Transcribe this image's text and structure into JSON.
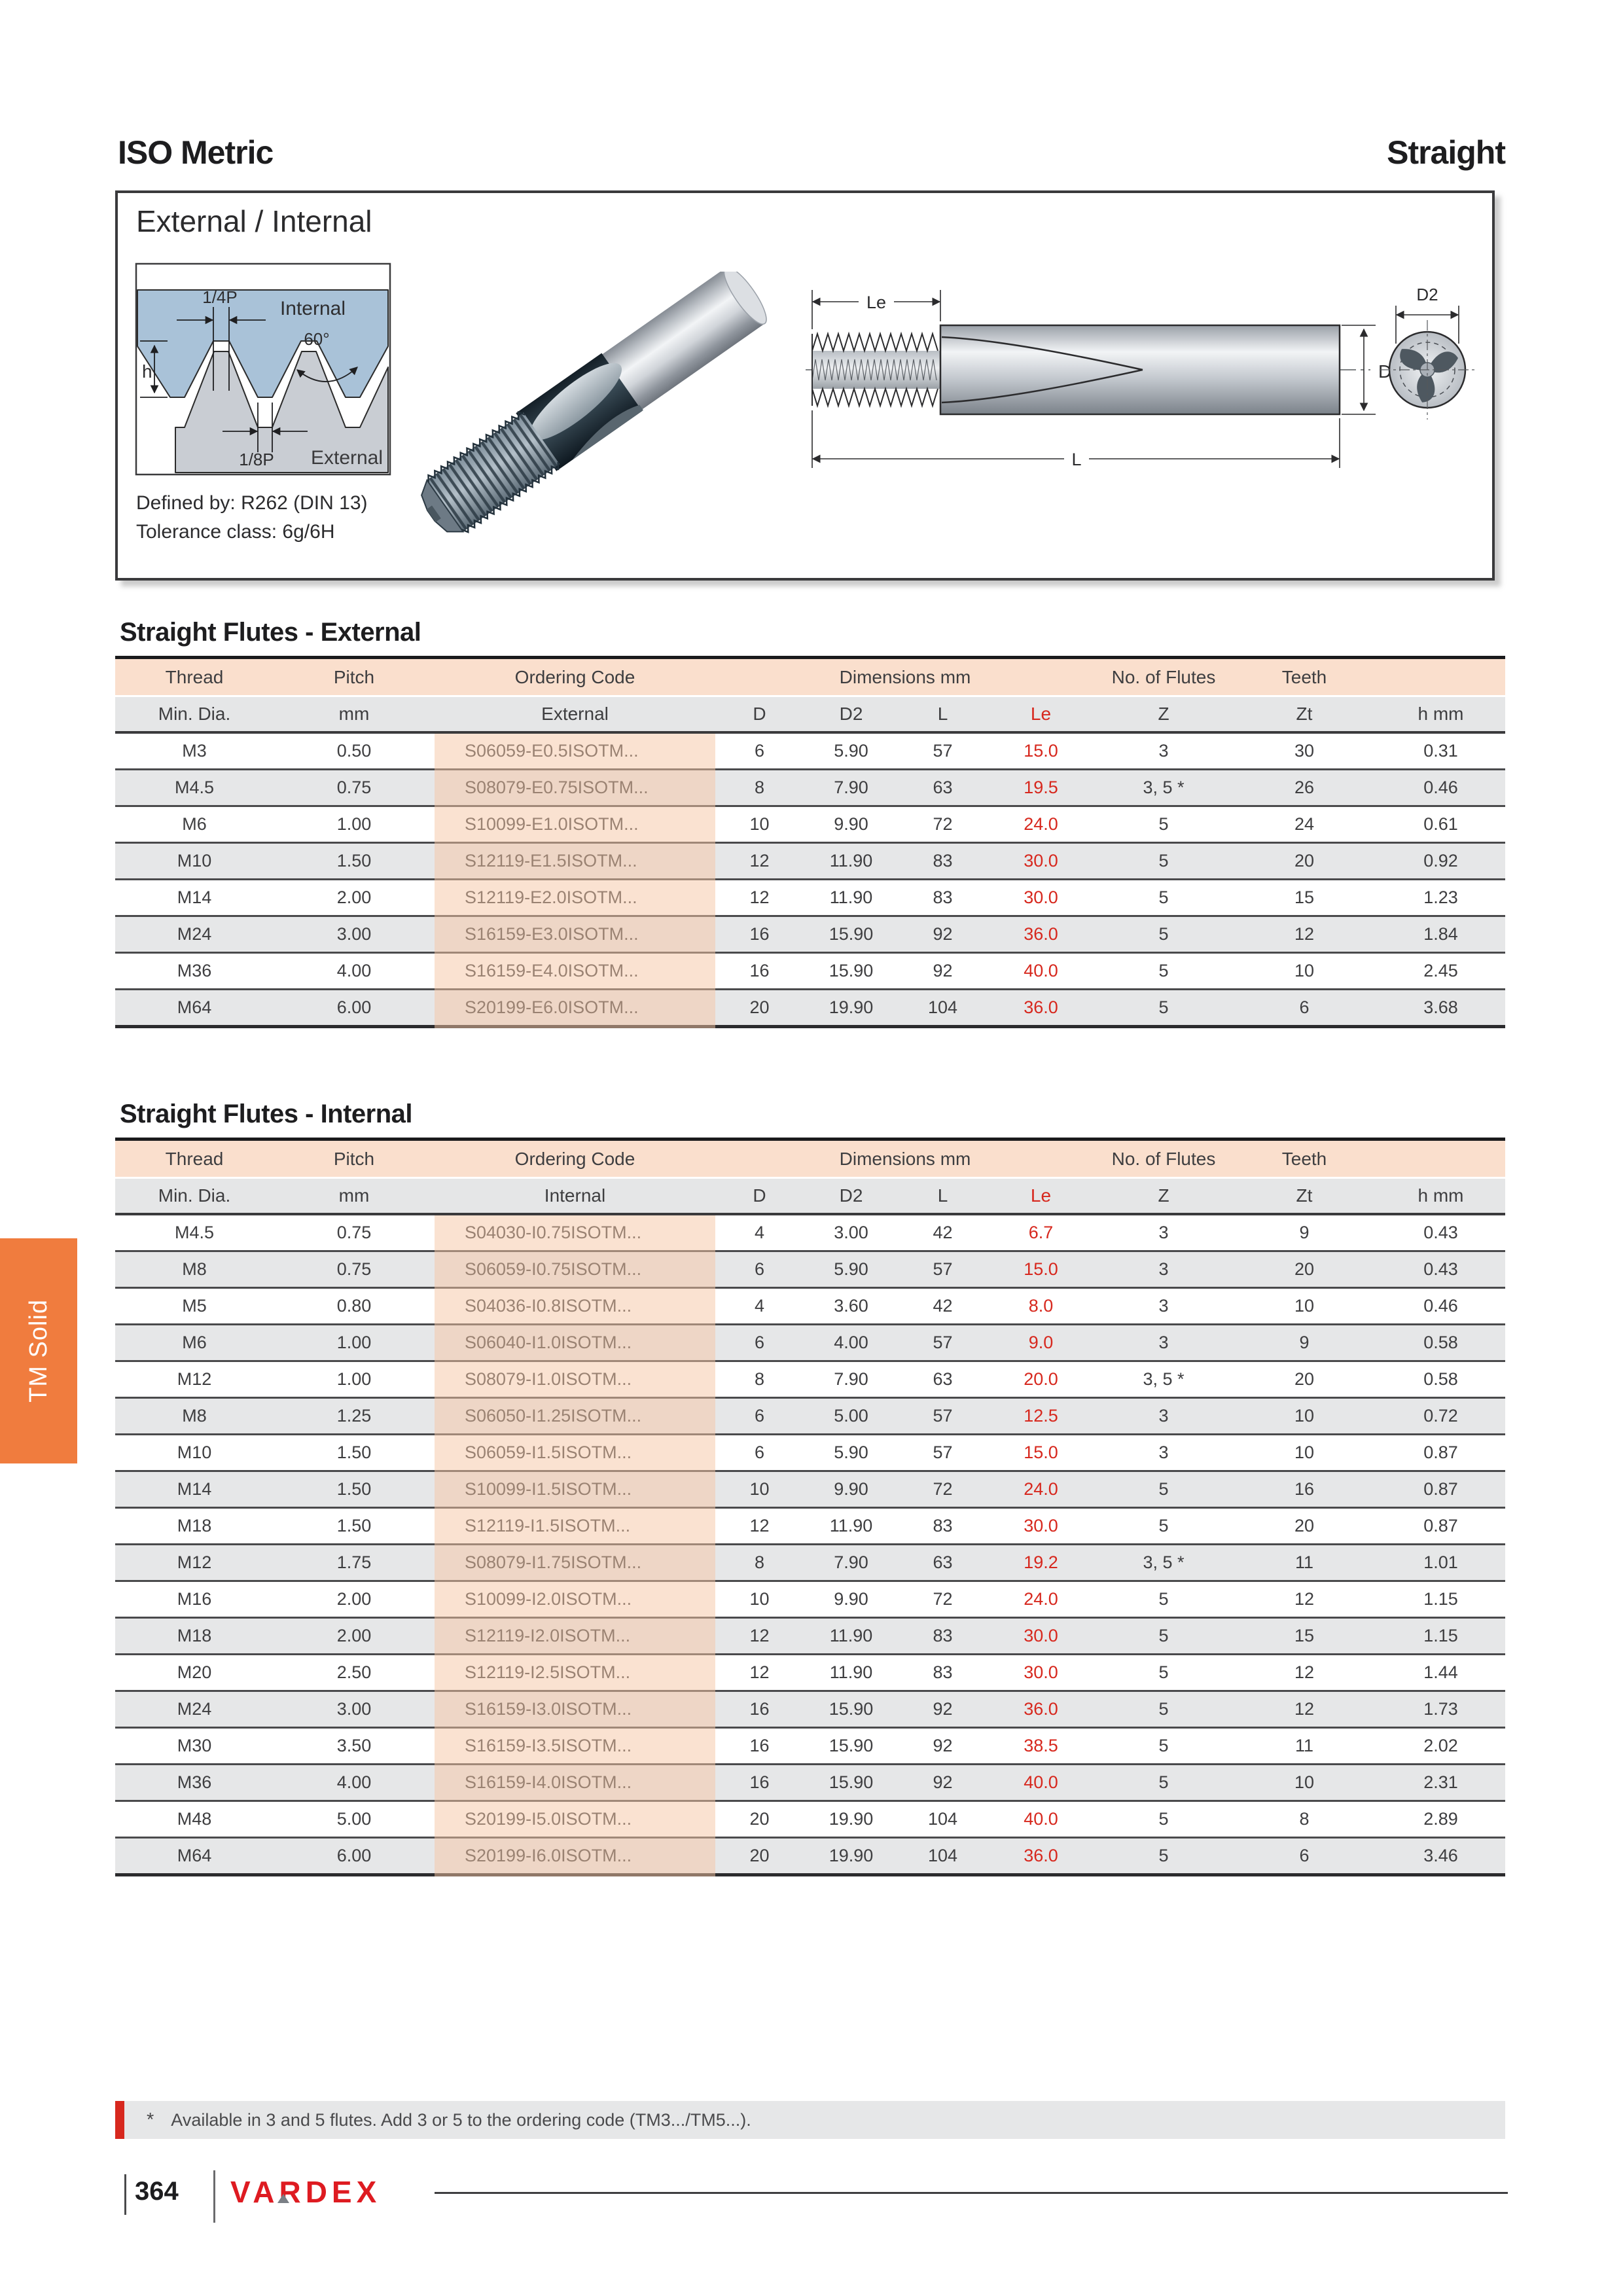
{
  "page": {
    "title_left": "ISO Metric",
    "title_right": "Straight"
  },
  "infobox": {
    "heading": "External / Internal",
    "defined_by": "Defined by: R262 (DIN 13)",
    "tolerance": "Tolerance class: 6g/6H",
    "profile": {
      "quarter_p": "1/4P",
      "internal": "Internal",
      "angle": "60°",
      "h": "h",
      "eighth_p": "1/8P",
      "external": "External"
    },
    "drawing": {
      "le": "Le",
      "l": "L",
      "d": "D",
      "d2": "D2"
    }
  },
  "tables": [
    {
      "title": "Straight Flutes - External",
      "group_headers": [
        {
          "label": "Thread",
          "span": 1
        },
        {
          "label": "Pitch",
          "span": 1
        },
        {
          "label": "Ordering Code",
          "span": 1
        },
        {
          "label": "Dimensions mm",
          "span": 4
        },
        {
          "label": "No. of Flutes",
          "span": 1
        },
        {
          "label": "Teeth",
          "span": 1
        },
        {
          "label": "",
          "span": 1
        }
      ],
      "col_headers": [
        "Min. Dia.",
        "mm",
        "External",
        "D",
        "D2",
        "L",
        "Le",
        "Z",
        "Zt",
        "h mm"
      ],
      "rows": [
        [
          "M3",
          "0.50",
          "S06059-E0.5ISOTM...",
          "6",
          "5.90",
          "57",
          "15.0",
          "3",
          "30",
          "0.31"
        ],
        [
          "M4.5",
          "0.75",
          "S08079-E0.75ISOTM...",
          "8",
          "7.90",
          "63",
          "19.5",
          "3, 5 *",
          "26",
          "0.46"
        ],
        [
          "M6",
          "1.00",
          "S10099-E1.0ISOTM...",
          "10",
          "9.90",
          "72",
          "24.0",
          "5",
          "24",
          "0.61"
        ],
        [
          "M10",
          "1.50",
          "S12119-E1.5ISOTM...",
          "12",
          "11.90",
          "83",
          "30.0",
          "5",
          "20",
          "0.92"
        ],
        [
          "M14",
          "2.00",
          "S12119-E2.0ISOTM...",
          "12",
          "11.90",
          "83",
          "30.0",
          "5",
          "15",
          "1.23"
        ],
        [
          "M24",
          "3.00",
          "S16159-E3.0ISOTM...",
          "16",
          "15.90",
          "92",
          "36.0",
          "5",
          "12",
          "1.84"
        ],
        [
          "M36",
          "4.00",
          "S16159-E4.0ISOTM...",
          "16",
          "15.90",
          "92",
          "40.0",
          "5",
          "10",
          "2.45"
        ],
        [
          "M64",
          "6.00",
          "S20199-E6.0ISOTM...",
          "20",
          "19.90",
          "104",
          "36.0",
          "5",
          "6",
          "3.68"
        ]
      ]
    },
    {
      "title": "Straight Flutes - Internal",
      "group_headers": [
        {
          "label": "Thread",
          "span": 1
        },
        {
          "label": "Pitch",
          "span": 1
        },
        {
          "label": "Ordering Code",
          "span": 1
        },
        {
          "label": "Dimensions mm",
          "span": 4
        },
        {
          "label": "No. of Flutes",
          "span": 1
        },
        {
          "label": "Teeth",
          "span": 1
        },
        {
          "label": "",
          "span": 1
        }
      ],
      "col_headers": [
        "Min. Dia.",
        "mm",
        "Internal",
        "D",
        "D2",
        "L",
        "Le",
        "Z",
        "Zt",
        "h mm"
      ],
      "rows": [
        [
          "M4.5",
          "0.75",
          "S04030-I0.75ISOTM...",
          "4",
          "3.00",
          "42",
          "6.7",
          "3",
          "9",
          "0.43"
        ],
        [
          "M8",
          "0.75",
          "S06059-I0.75ISOTM...",
          "6",
          "5.90",
          "57",
          "15.0",
          "3",
          "20",
          "0.43"
        ],
        [
          "M5",
          "0.80",
          "S04036-I0.8ISOTM...",
          "4",
          "3.60",
          "42",
          "8.0",
          "3",
          "10",
          "0.46"
        ],
        [
          "M6",
          "1.00",
          "S06040-I1.0ISOTM...",
          "6",
          "4.00",
          "57",
          "9.0",
          "3",
          "9",
          "0.58"
        ],
        [
          "M12",
          "1.00",
          "S08079-I1.0ISOTM...",
          "8",
          "7.90",
          "63",
          "20.0",
          "3, 5 *",
          "20",
          "0.58"
        ],
        [
          "M8",
          "1.25",
          "S06050-I1.25ISOTM...",
          "6",
          "5.00",
          "57",
          "12.5",
          "3",
          "10",
          "0.72"
        ],
        [
          "M10",
          "1.50",
          "S06059-I1.5ISOTM...",
          "6",
          "5.90",
          "57",
          "15.0",
          "3",
          "10",
          "0.87"
        ],
        [
          "M14",
          "1.50",
          "S10099-I1.5ISOTM...",
          "10",
          "9.90",
          "72",
          "24.0",
          "5",
          "16",
          "0.87"
        ],
        [
          "M18",
          "1.50",
          "S12119-I1.5ISOTM...",
          "12",
          "11.90",
          "83",
          "30.0",
          "5",
          "20",
          "0.87"
        ],
        [
          "M12",
          "1.75",
          "S08079-I1.75ISOTM...",
          "8",
          "7.90",
          "63",
          "19.2",
          "3, 5 *",
          "11",
          "1.01"
        ],
        [
          "M16",
          "2.00",
          "S10099-I2.0ISOTM...",
          "10",
          "9.90",
          "72",
          "24.0",
          "5",
          "12",
          "1.15"
        ],
        [
          "M18",
          "2.00",
          "S12119-I2.0ISOTM...",
          "12",
          "11.90",
          "83",
          "30.0",
          "5",
          "15",
          "1.15"
        ],
        [
          "M20",
          "2.50",
          "S12119-I2.5ISOTM...",
          "12",
          "11.90",
          "83",
          "30.0",
          "5",
          "12",
          "1.44"
        ],
        [
          "M24",
          "3.00",
          "S16159-I3.0ISOTM...",
          "16",
          "15.90",
          "92",
          "36.0",
          "5",
          "12",
          "1.73"
        ],
        [
          "M30",
          "3.50",
          "S16159-I3.5ISOTM...",
          "16",
          "15.90",
          "92",
          "38.5",
          "5",
          "11",
          "2.02"
        ],
        [
          "M36",
          "4.00",
          "S16159-I4.0ISOTM...",
          "16",
          "15.90",
          "92",
          "40.0",
          "5",
          "10",
          "2.31"
        ],
        [
          "M48",
          "5.00",
          "S20199-I5.0ISOTM...",
          "20",
          "19.90",
          "104",
          "40.0",
          "5",
          "8",
          "2.89"
        ],
        [
          "M64",
          "6.00",
          "S20199-I6.0ISOTM...",
          "20",
          "19.90",
          "104",
          "36.0",
          "5",
          "6",
          "3.46"
        ]
      ]
    }
  ],
  "footnote": {
    "marker": "*",
    "text": "Available in 3 and 5 flutes. Add 3 or 5 to the ordering code (TM3.../TM5...)."
  },
  "footer": {
    "page_number": "364",
    "brand": "VARDEX"
  },
  "side_tab": {
    "label": "TM Solid"
  },
  "colors": {
    "accent_red": "#D7281E",
    "tab_orange": "#F07C3E",
    "header_peach": "#FADFCD",
    "row_gray": "#E6E7E8",
    "brand_red": "#DE1B21",
    "profile_blue": "#A9C2D8",
    "profile_gray": "#C9CDD3"
  }
}
